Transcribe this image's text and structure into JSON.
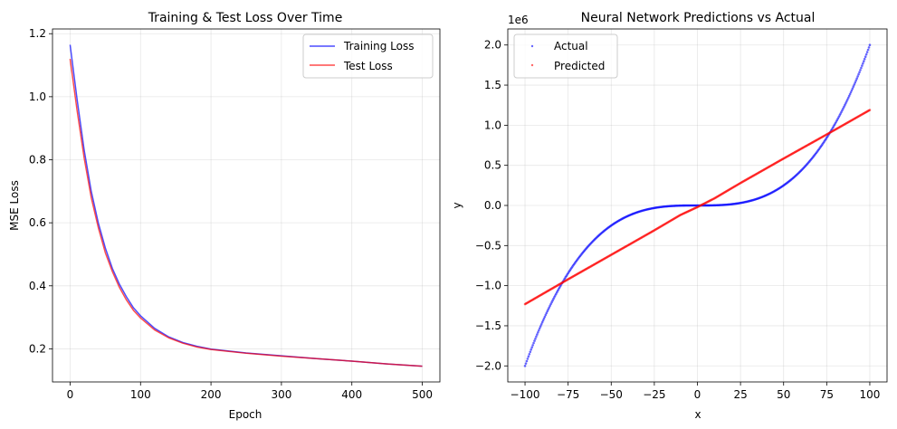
{
  "chart_data": [
    {
      "type": "line",
      "title": "Training & Test Loss Over Time",
      "xlabel": "Epoch",
      "ylabel": "MSE Loss",
      "xlim": [
        -25,
        525
      ],
      "ylim": [
        0.095,
        1.215
      ],
      "xticks": [
        0,
        100,
        200,
        300,
        400,
        500
      ],
      "yticks": [
        0.2,
        0.4,
        0.6,
        0.8,
        1.0,
        1.2
      ],
      "ytick_labels": [
        "0.2",
        "0.4",
        "0.6",
        "0.8",
        "1.0",
        "1.2"
      ],
      "grid": true,
      "legend_position": "upper right",
      "series": [
        {
          "name": "Training Loss",
          "color": "#0000ff",
          "x": [
            0,
            10,
            20,
            30,
            40,
            50,
            60,
            70,
            80,
            90,
            100,
            120,
            140,
            160,
            180,
            200,
            250,
            300,
            350,
            400,
            450,
            500
          ],
          "y": [
            1.165,
            0.99,
            0.83,
            0.7,
            0.6,
            0.52,
            0.455,
            0.405,
            0.365,
            0.33,
            0.305,
            0.265,
            0.238,
            0.22,
            0.208,
            0.199,
            0.187,
            0.178,
            0.169,
            0.161,
            0.152,
            0.145
          ]
        },
        {
          "name": "Test Loss",
          "color": "#ff0000",
          "x": [
            0,
            10,
            20,
            30,
            40,
            50,
            60,
            70,
            80,
            90,
            100,
            120,
            140,
            160,
            180,
            200,
            250,
            300,
            350,
            400,
            450,
            500
          ],
          "y": [
            1.12,
            0.955,
            0.805,
            0.68,
            0.585,
            0.505,
            0.445,
            0.395,
            0.355,
            0.322,
            0.298,
            0.26,
            0.235,
            0.218,
            0.206,
            0.198,
            0.186,
            0.177,
            0.169,
            0.161,
            0.152,
            0.145
          ]
        }
      ]
    },
    {
      "type": "scatter",
      "title": "Neural Network Predictions vs Actual",
      "xlabel": "x",
      "ylabel": "y",
      "y_offset_label": "1e6",
      "xlim": [
        -110,
        110
      ],
      "ylim": [
        -2.2,
        2.2
      ],
      "xticks": [
        -100,
        -75,
        -50,
        -25,
        0,
        25,
        50,
        75,
        100
      ],
      "yticks": [
        -2.0,
        -1.5,
        -1.0,
        -0.5,
        0.0,
        0.5,
        1.0,
        1.5,
        2.0
      ],
      "ytick_labels": [
        "−2.0",
        "−1.5",
        "−1.0",
        "−0.5",
        "0.0",
        "0.5",
        "1.0",
        "1.5",
        "2.0"
      ],
      "xtick_labels": [
        "−100",
        "−75",
        "−50",
        "−25",
        "0",
        "25",
        "50",
        "75",
        "100"
      ],
      "grid": true,
      "legend_position": "upper left",
      "series": [
        {
          "name": "Actual",
          "color": "#0000ff",
          "formula": "2*x^3",
          "x_range": [
            -100,
            100
          ]
        },
        {
          "name": "Predicted",
          "color": "#ff0000",
          "x": [
            -100,
            -75,
            -50,
            -25,
            -10,
            0,
            10,
            25,
            50,
            75,
            100
          ],
          "y": [
            -1.23,
            -0.92,
            -0.615,
            -0.31,
            -0.12,
            -0.02,
            0.09,
            0.28,
            0.585,
            0.885,
            1.19
          ]
        }
      ]
    }
  ]
}
